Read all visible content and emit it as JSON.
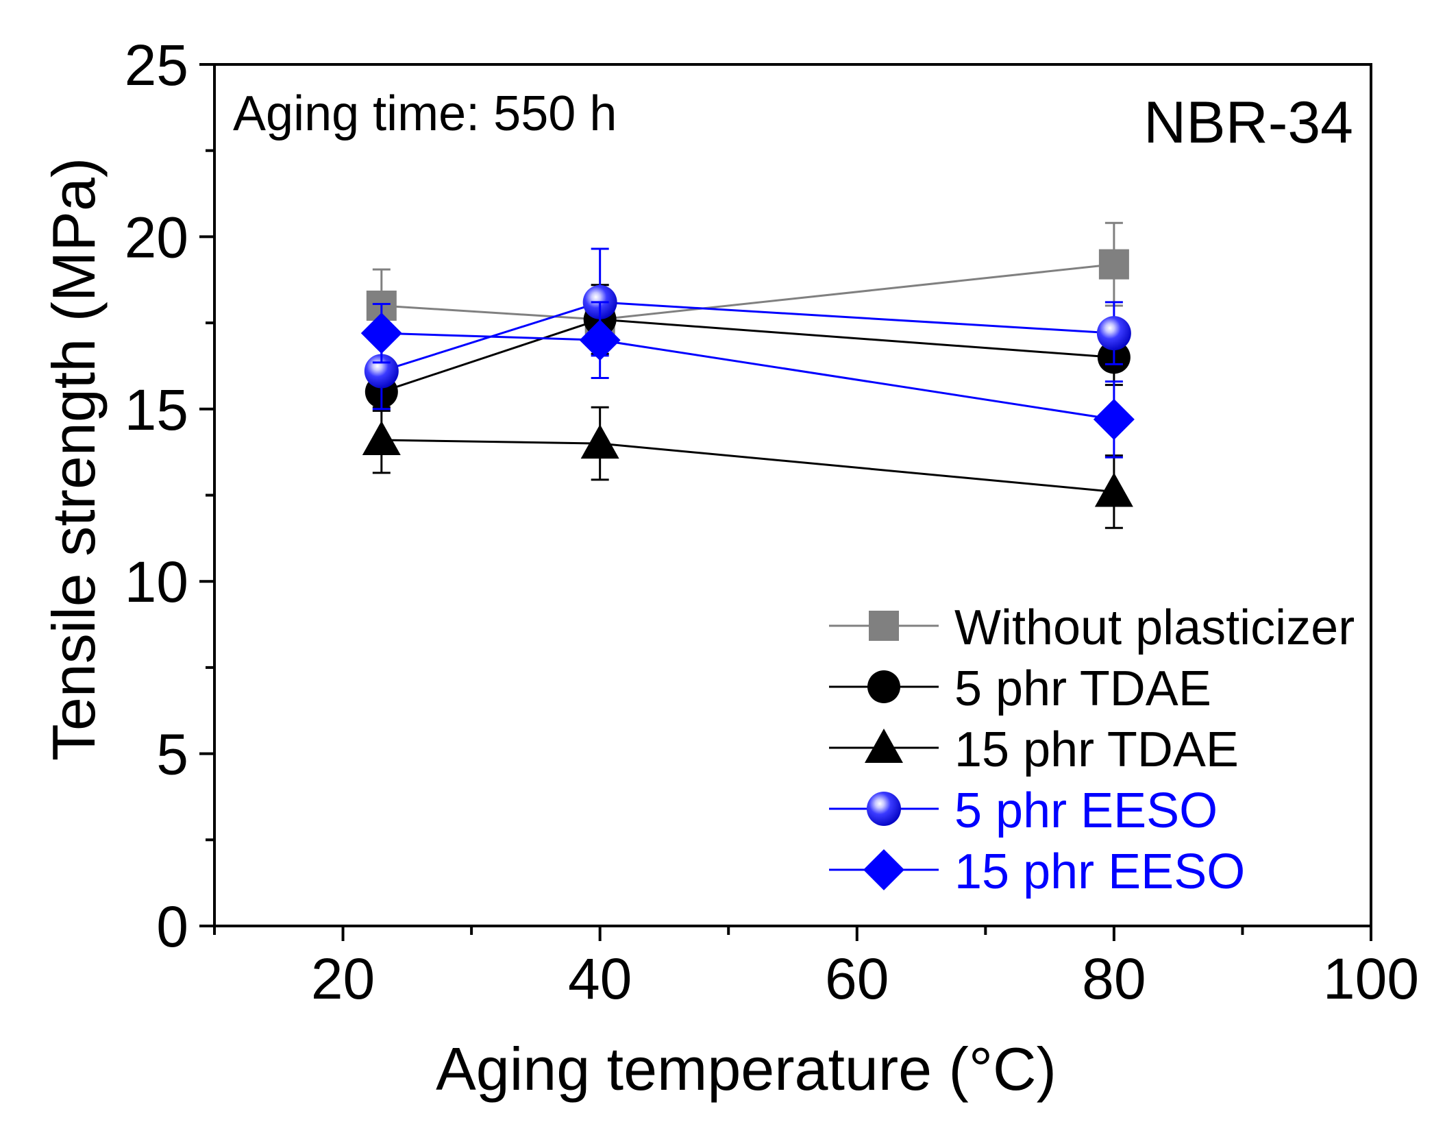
{
  "chart_data": {
    "type": "line",
    "annotation_left": "Aging time: 550 h",
    "annotation_right": "NBR-34",
    "xlabel": "Aging temperature (°C)",
    "ylabel": "Tensile strength (MPa)",
    "xlim": [
      10,
      100
    ],
    "ylim": [
      0,
      25
    ],
    "x_ticks": [
      20,
      40,
      60,
      80,
      100
    ],
    "x_tick_labels": [
      "20",
      "40",
      "60",
      "80",
      "100"
    ],
    "x_minor_ticks": [
      10,
      30,
      50,
      70,
      90
    ],
    "y_ticks": [
      0,
      5,
      10,
      15,
      20,
      25
    ],
    "y_tick_labels": [
      "0",
      "5",
      "10",
      "15",
      "20",
      "25"
    ],
    "y_minor_ticks": [
      2.5,
      7.5,
      12.5,
      17.5,
      22.5
    ],
    "legend_position": "bottom-right",
    "series": [
      {
        "name": "Without plasticizer",
        "marker": "square",
        "color": "#808080",
        "x": [
          23,
          40,
          80
        ],
        "values": [
          18.0,
          17.6,
          19.2
        ],
        "errors": [
          1.05,
          1.0,
          1.2
        ]
      },
      {
        "name": "5 phr TDAE",
        "marker": "circle",
        "color": "#000000",
        "x": [
          23,
          40,
          80
        ],
        "values": [
          15.5,
          17.6,
          16.5
        ],
        "errors": [
          0.55,
          1.0,
          0.8
        ]
      },
      {
        "name": "15 phr TDAE",
        "marker": "triangle",
        "color": "#000000",
        "x": [
          23,
          40,
          80
        ],
        "values": [
          14.1,
          14.0,
          12.6
        ],
        "errors": [
          0.95,
          1.05,
          1.05
        ]
      },
      {
        "name": "5 phr EESO",
        "marker": "sphere",
        "color": "#0000ff",
        "x": [
          23,
          40,
          80
        ],
        "values": [
          16.1,
          18.1,
          17.2
        ],
        "errors": [
          1.1,
          1.55,
          0.9
        ]
      },
      {
        "name": "15 phr EESO",
        "marker": "diamond",
        "color": "#0000ff",
        "x": [
          23,
          40,
          80
        ],
        "values": [
          17.2,
          17.0,
          14.7
        ],
        "errors": [
          0.85,
          1.1,
          1.1
        ]
      }
    ]
  }
}
